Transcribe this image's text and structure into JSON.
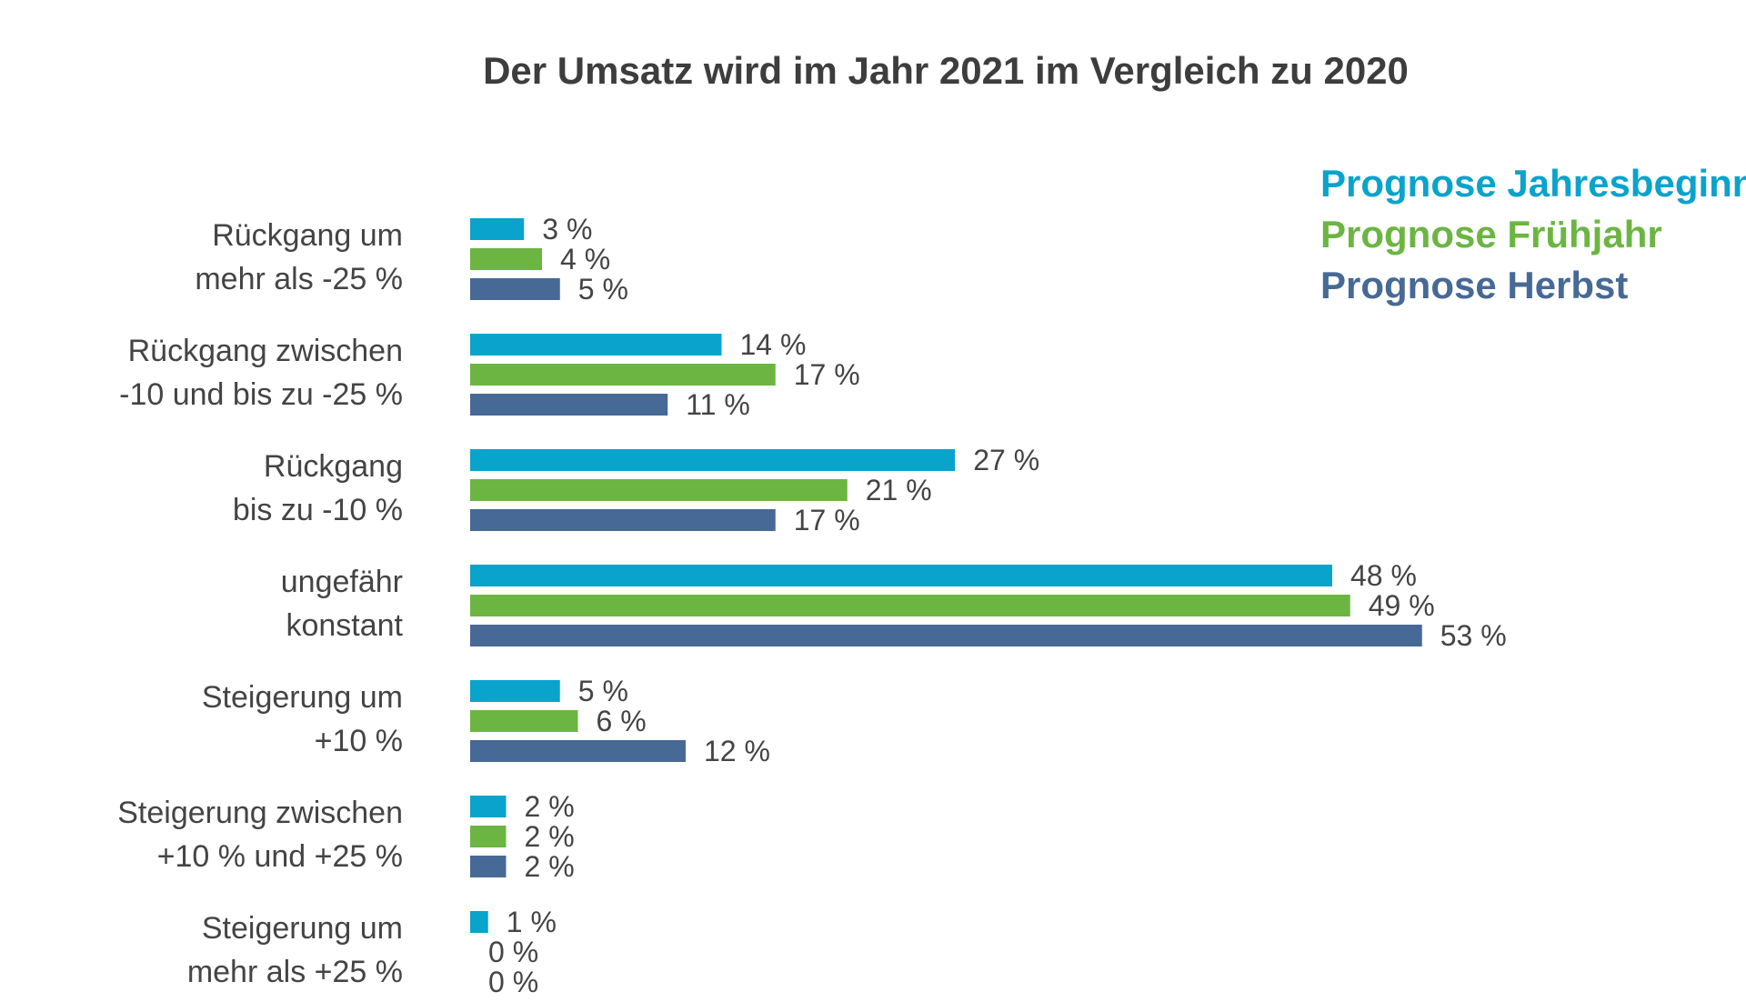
{
  "chart_data": {
    "type": "bar",
    "orientation": "horizontal",
    "title": "Der Umsatz wird im Jahr 2021 im Vergleich zu 2020",
    "categories": [
      [
        "Rückgang um",
        "mehr als -25 %"
      ],
      [
        "Rückgang zwischen",
        "-10 und bis zu -25 %"
      ],
      [
        "Rückgang",
        "bis zu -10 %"
      ],
      [
        "ungefähr",
        "konstant"
      ],
      [
        "Steigerung um",
        "+10 %"
      ],
      [
        "Steigerung zwischen",
        "+10 % und +25 %"
      ],
      [
        "Steigerung um",
        "mehr als +25 %"
      ]
    ],
    "series": [
      {
        "name": "Prognose Jahresbeginn",
        "color": "#0aa3cc",
        "values": [
          3,
          14,
          27,
          48,
          5,
          2,
          1
        ]
      },
      {
        "name": "Prognose Frühjahr",
        "color": "#6cb543",
        "values": [
          4,
          17,
          21,
          49,
          6,
          2,
          0
        ]
      },
      {
        "name": "Prognose Herbst",
        "color": "#476995",
        "values": [
          5,
          11,
          17,
          53,
          12,
          2,
          0
        ]
      }
    ],
    "value_suffix": " %",
    "xlim": [
      0,
      60
    ],
    "grid": false,
    "legend_position": "top-right",
    "xlabel": "",
    "ylabel": ""
  }
}
